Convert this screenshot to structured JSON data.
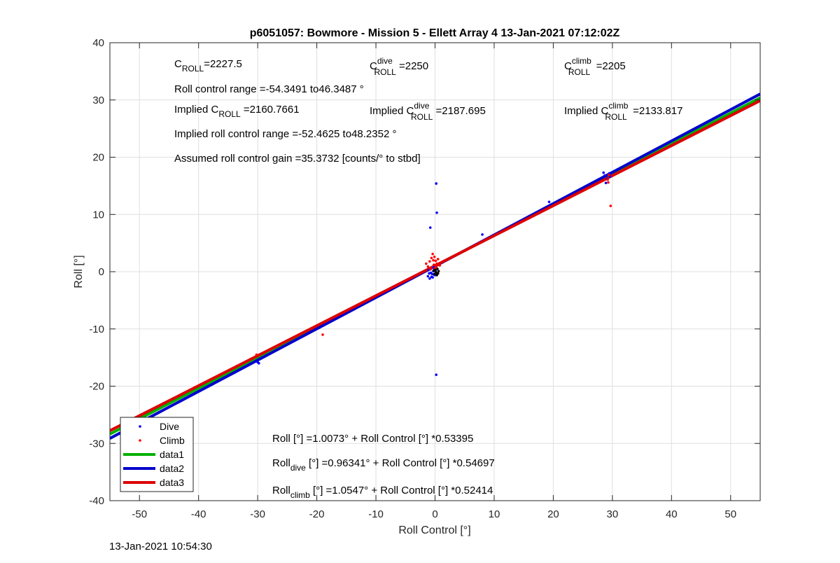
{
  "chart_data": {
    "type": "scatter",
    "title": "p6051057: Bowmore - Mission 5 - Ellett Array 4 13-Jan-2021 07:12:02Z",
    "xlabel": "Roll Control [°]",
    "ylabel": "Roll [°]",
    "xlim": [
      -55,
      55
    ],
    "ylim": [
      -40,
      40
    ],
    "xticks": [
      -50,
      -40,
      -30,
      -20,
      -10,
      0,
      10,
      20,
      30,
      40,
      50
    ],
    "yticks": [
      -40,
      -30,
      -20,
      -10,
      0,
      10,
      20,
      30,
      40
    ],
    "grid": true,
    "legend_position": "bottom-left",
    "legend": [
      "Dive",
      "Climb",
      "data1",
      "data2",
      "data3"
    ],
    "series": [
      {
        "name": "Dive",
        "kind": "points",
        "color": "#0000ff",
        "points": [
          [
            -30.0,
            -15.8
          ],
          [
            -29.8,
            -16.0
          ],
          [
            -0.8,
            7.7
          ],
          [
            0.2,
            15.4
          ],
          [
            0.3,
            10.3
          ],
          [
            0.2,
            -18.0
          ],
          [
            -1.0,
            -0.3
          ],
          [
            -1.2,
            -0.8
          ],
          [
            -0.9,
            -1.2
          ],
          [
            -0.6,
            -0.9
          ],
          [
            -0.5,
            -0.4
          ],
          [
            -0.3,
            0.1
          ],
          [
            -0.2,
            -0.5
          ],
          [
            -0.1,
            0.4
          ],
          [
            0.0,
            -0.6
          ],
          [
            0.1,
            0.2
          ],
          [
            -0.4,
            -1.0
          ],
          [
            -0.7,
            -0.2
          ],
          [
            -1.1,
            0.3
          ],
          [
            -0.2,
            0.8
          ],
          [
            8.0,
            6.5
          ],
          [
            19.3,
            12.2
          ],
          [
            28.5,
            17.3
          ],
          [
            28.7,
            16.8
          ],
          [
            28.9,
            15.5
          ],
          [
            29.1,
            16.2
          ],
          [
            29.5,
            17.2
          ],
          [
            29.6,
            16.6
          ]
        ]
      },
      {
        "name": "Climb",
        "kind": "points",
        "color": "#ff0000",
        "points": [
          [
            -30.2,
            -14.5
          ],
          [
            -19.0,
            -11.0
          ],
          [
            -1.5,
            1.4
          ],
          [
            -1.2,
            0.9
          ],
          [
            -0.9,
            1.8
          ],
          [
            -0.6,
            2.4
          ],
          [
            -0.4,
            3.1
          ],
          [
            -0.3,
            2.0
          ],
          [
            -0.2,
            1.2
          ],
          [
            -0.1,
            2.6
          ],
          [
            0.0,
            0.6
          ],
          [
            0.1,
            1.9
          ],
          [
            0.3,
            1.4
          ],
          [
            0.5,
            2.2
          ],
          [
            0.8,
            1.1
          ],
          [
            -0.8,
            0.4
          ],
          [
            0.2,
            0.9
          ],
          [
            29.2,
            16.1
          ],
          [
            29.3,
            15.6
          ],
          [
            29.4,
            16.9
          ],
          [
            29.7,
            11.5
          ]
        ]
      },
      {
        "name": "Black marks",
        "kind": "points",
        "color": "#000000",
        "points": [
          [
            0.0,
            0.3
          ],
          [
            0.2,
            -0.2
          ],
          [
            0.4,
            0.5
          ],
          [
            0.6,
            0.1
          ],
          [
            -0.1,
            -0.4
          ],
          [
            0.3,
            -0.6
          ],
          [
            0.5,
            -0.3
          ],
          [
            0.1,
            0.0
          ],
          [
            -0.2,
            0.2
          ]
        ]
      },
      {
        "name": "data1",
        "kind": "line",
        "color": "#00b000",
        "intercept": 1.0073,
        "slope": 0.53395
      },
      {
        "name": "data2",
        "kind": "line",
        "color": "#0000cc",
        "intercept": 0.96341,
        "slope": 0.54697
      },
      {
        "name": "data3",
        "kind": "line",
        "color": "#dd0000",
        "intercept": 1.0547,
        "slope": 0.52414
      }
    ],
    "annotations": {
      "c_roll": {
        "prefix": "C",
        "sub": "ROLL",
        "value": "=2227.5"
      },
      "c_roll_dive": {
        "prefix": "C",
        "sup": "dive",
        "sub": "ROLL",
        "value": " =2250"
      },
      "c_roll_climb": {
        "prefix": "C",
        "sup": "climb",
        "sub": "ROLL",
        "value": " =2205"
      },
      "roll_control_range": "Roll control range =-54.3491 to46.3487 °",
      "implied_c_roll": {
        "prefix": "Implied C",
        "sub": "ROLL",
        "value": " =2160.7661"
      },
      "implied_c_roll_dive": {
        "prefix": "Implied C",
        "sup": "dive",
        "sub": "ROLL",
        "value": " =2187.695"
      },
      "implied_c_roll_climb": {
        "prefix": "Implied C",
        "sup": "climb",
        "sub": "ROLL",
        "value": " =2133.817"
      },
      "implied_range": "Implied roll control range =-52.4625 to48.2352 °",
      "assumed_gain": "Assumed roll control gain =35.3732 [counts/° to stbd]",
      "fit_all": "Roll [°] =1.0073° + Roll Control [°] *0.53395",
      "fit_dive": {
        "prefix": "Roll",
        "sub": "dive",
        "value": " [°] =0.96341° + Roll Control [°] *0.54697"
      },
      "fit_climb": {
        "prefix": "Roll",
        "sub": "climb",
        "value": " [°] =1.0547° + Roll Control [°] *0.52414"
      }
    }
  },
  "footer": {
    "timestamp": "13-Jan-2021 10:54:30"
  }
}
